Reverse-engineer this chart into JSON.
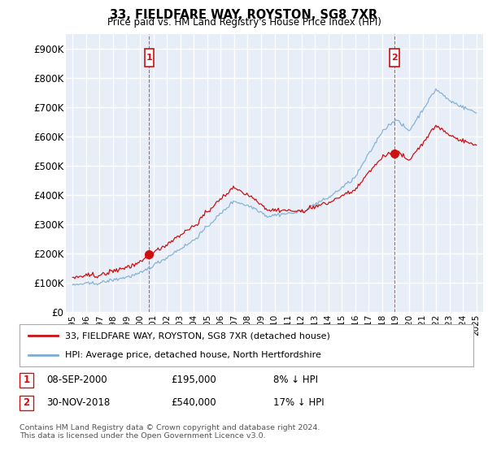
{
  "title": "33, FIELDFARE WAY, ROYSTON, SG8 7XR",
  "subtitle": "Price paid vs. HM Land Registry's House Price Index (HPI)",
  "ylim": [
    0,
    950000
  ],
  "yticks": [
    0,
    100000,
    200000,
    300000,
    400000,
    500000,
    600000,
    700000,
    800000,
    900000
  ],
  "ytick_labels": [
    "£0",
    "£100K",
    "£200K",
    "£300K",
    "£400K",
    "£500K",
    "£600K",
    "£700K",
    "£800K",
    "£900K"
  ],
  "background_color": "#ffffff",
  "plot_bg_color": "#e8eef8",
  "grid_color": "#ffffff",
  "hpi_color": "#7aadd4",
  "price_color": "#cc1111",
  "ann1_x": 2000.69,
  "ann1_y": 195000,
  "ann2_x": 2018.92,
  "ann2_y": 540000,
  "legend_line1": "33, FIELDFARE WAY, ROYSTON, SG8 7XR (detached house)",
  "legend_line2": "HPI: Average price, detached house, North Hertfordshire",
  "table_row1": [
    "1",
    "08-SEP-2000",
    "£195,000",
    "8% ↓ HPI"
  ],
  "table_row2": [
    "2",
    "30-NOV-2018",
    "£540,000",
    "17% ↓ HPI"
  ],
  "footnote": "Contains HM Land Registry data © Crown copyright and database right 2024.\nThis data is licensed under the Open Government Licence v3.0.",
  "xmin": 1994.5,
  "xmax": 2025.5
}
